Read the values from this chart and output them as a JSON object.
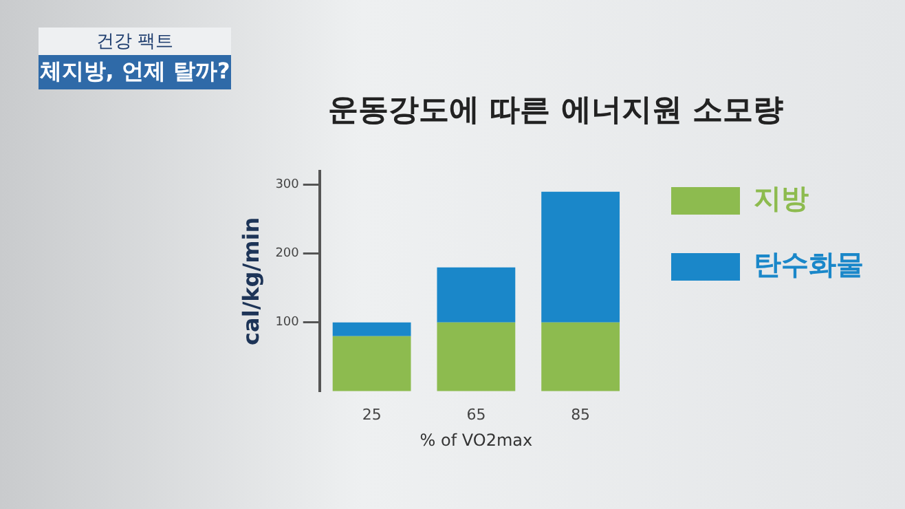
{
  "chart_data": {
    "type": "bar",
    "title": "운동강도에 따른 에너지원 소모량",
    "xlabel": "% of VO2max",
    "ylabel": "cal/kg/min",
    "annotations": [
      "건강 팩트",
      "체지방, 언제 탈까?"
    ],
    "categories": [
      "25",
      "65",
      "85"
    ],
    "stacked": true,
    "series": [
      {
        "name": "지방",
        "color": "#8dbb4f",
        "values": [
          80,
          100,
          100
        ]
      },
      {
        "name": "탄수화물",
        "color": "#1a87c9",
        "values": [
          20,
          80,
          190
        ]
      }
    ],
    "ylim": [
      0,
      320
    ],
    "yticks": [
      100,
      200,
      300
    ],
    "grid": false,
    "legend": "right"
  }
}
